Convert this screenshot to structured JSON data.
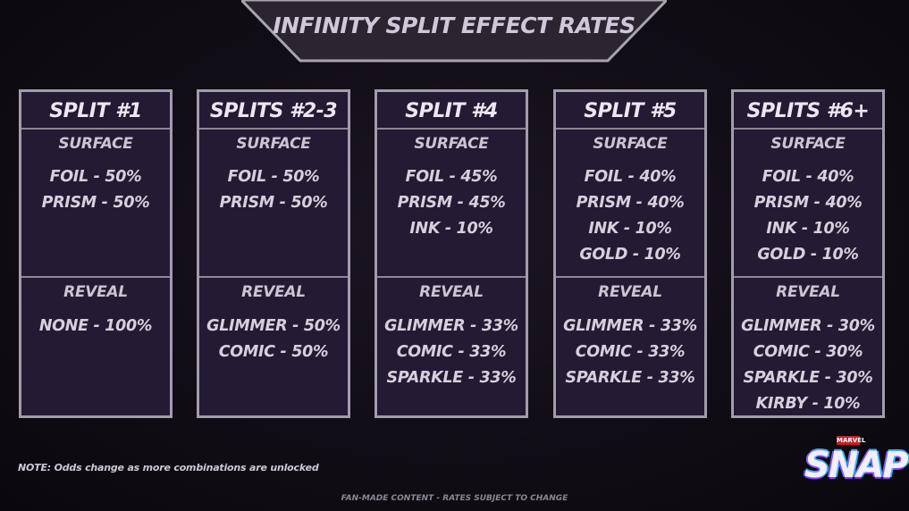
{
  "header": {
    "title": "INFINITY SPLIT EFFECT RATES"
  },
  "columns": [
    {
      "title": "SPLIT #1",
      "surface_label": "SURFACE",
      "surface": [
        "FOIL  -  50%",
        "PRISM  -  50%"
      ],
      "reveal_label": "REVEAL",
      "reveal": [
        "NONE - 100%"
      ]
    },
    {
      "title": "SPLITS #2-3",
      "surface_label": "SURFACE",
      "surface": [
        "FOIL  -  50%",
        "PRISM  -  50%"
      ],
      "reveal_label": "REVEAL",
      "reveal": [
        "GLIMMER  -  50%",
        "COMIC  -  50%"
      ]
    },
    {
      "title": "SPLIT #4",
      "surface_label": "SURFACE",
      "surface": [
        "FOIL  -  45%",
        "PRISM  -  45%",
        "INK  -  10%"
      ],
      "reveal_label": "REVEAL",
      "reveal": [
        "GLIMMER  -  33%",
        "COMIC  -  33%",
        "SPARKLE  -  33%"
      ]
    },
    {
      "title": "SPLIT #5",
      "surface_label": "SURFACE",
      "surface": [
        "FOIL  -  40%",
        "PRISM  -  40%",
        "INK  -  10%",
        "GOLD  -  10%"
      ],
      "reveal_label": "REVEAL",
      "reveal": [
        "GLIMMER  -  33%",
        "COMIC  -  33%",
        "SPARKLE  -  33%"
      ]
    },
    {
      "title": "SPLITS #6+",
      "surface_label": "SURFACE",
      "surface": [
        "FOIL  -  40%",
        "PRISM  -  40%",
        "INK  -  10%",
        "GOLD  -  10%"
      ],
      "reveal_label": "REVEAL",
      "reveal": [
        "GLIMMER  -  30%",
        "COMIC  -  30%",
        "SPARKLE  -  30%",
        "KIRBY  -  10%"
      ]
    }
  ],
  "note": "NOTE: Odds change as more combinations are unlocked",
  "footer": "FAN-MADE CONTENT - RATES SUBJECT TO CHANGE",
  "logo": {
    "marvel": "MARVEL",
    "snap": "SNAP"
  },
  "colors": {
    "panel": "#231b33",
    "border": "#a29cab",
    "background": "#110d16"
  }
}
